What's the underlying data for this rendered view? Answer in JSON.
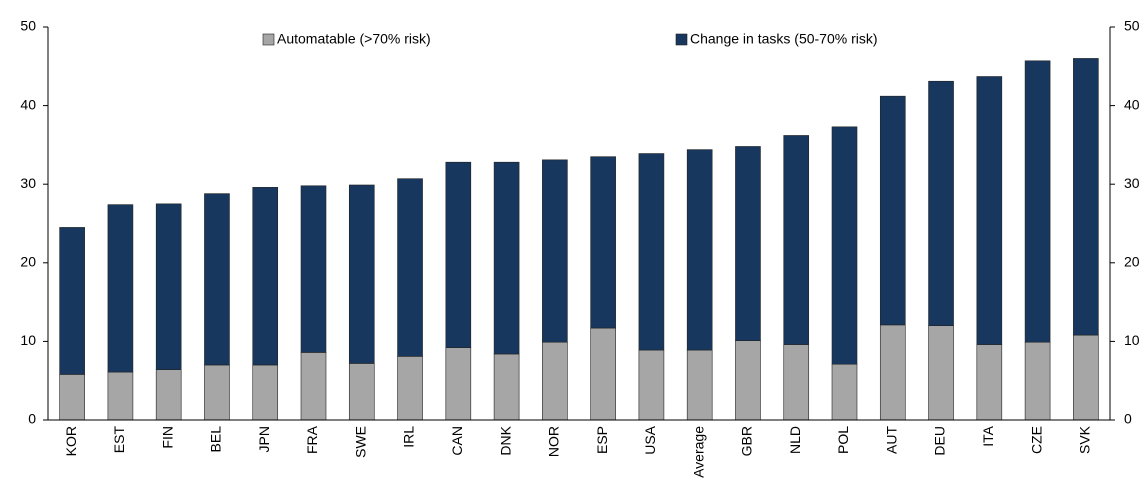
{
  "chart_data": {
    "type": "stacked_bar",
    "categories": [
      "KOR",
      "EST",
      "FIN",
      "BEL",
      "JPN",
      "FRA",
      "SWE",
      "IRL",
      "CAN",
      "DNK",
      "NOR",
      "ESP",
      "USA",
      "Average",
      "GBR",
      "NLD",
      "POL",
      "AUT",
      "DEU",
      "ITA",
      "CZE",
      "SVK"
    ],
    "series": [
      {
        "name": "Automatable (>70% risk)",
        "color": "#a6a6a6",
        "values": [
          5.8,
          6.1,
          6.4,
          7.0,
          7.0,
          8.6,
          7.2,
          8.1,
          9.2,
          8.4,
          9.9,
          11.7,
          8.9,
          8.9,
          10.1,
          9.6,
          7.1,
          12.1,
          12.0,
          9.6,
          9.9,
          10.8
        ]
      },
      {
        "name": "Change in tasks (50-70% risk)",
        "color": "#17375e",
        "values": [
          18.7,
          21.3,
          21.1,
          21.8,
          22.6,
          21.2,
          22.7,
          22.6,
          23.6,
          24.4,
          23.2,
          21.8,
          25.0,
          25.5,
          24.7,
          26.6,
          30.2,
          29.1,
          31.1,
          34.1,
          35.8,
          35.2
        ]
      }
    ],
    "ylim": [
      0,
      50
    ],
    "yticks": [
      0,
      10,
      20,
      30,
      40,
      50
    ],
    "y2lim": [
      0,
      50
    ],
    "y2ticks": [
      0,
      10,
      20,
      30,
      40,
      50
    ],
    "legend": "top"
  }
}
